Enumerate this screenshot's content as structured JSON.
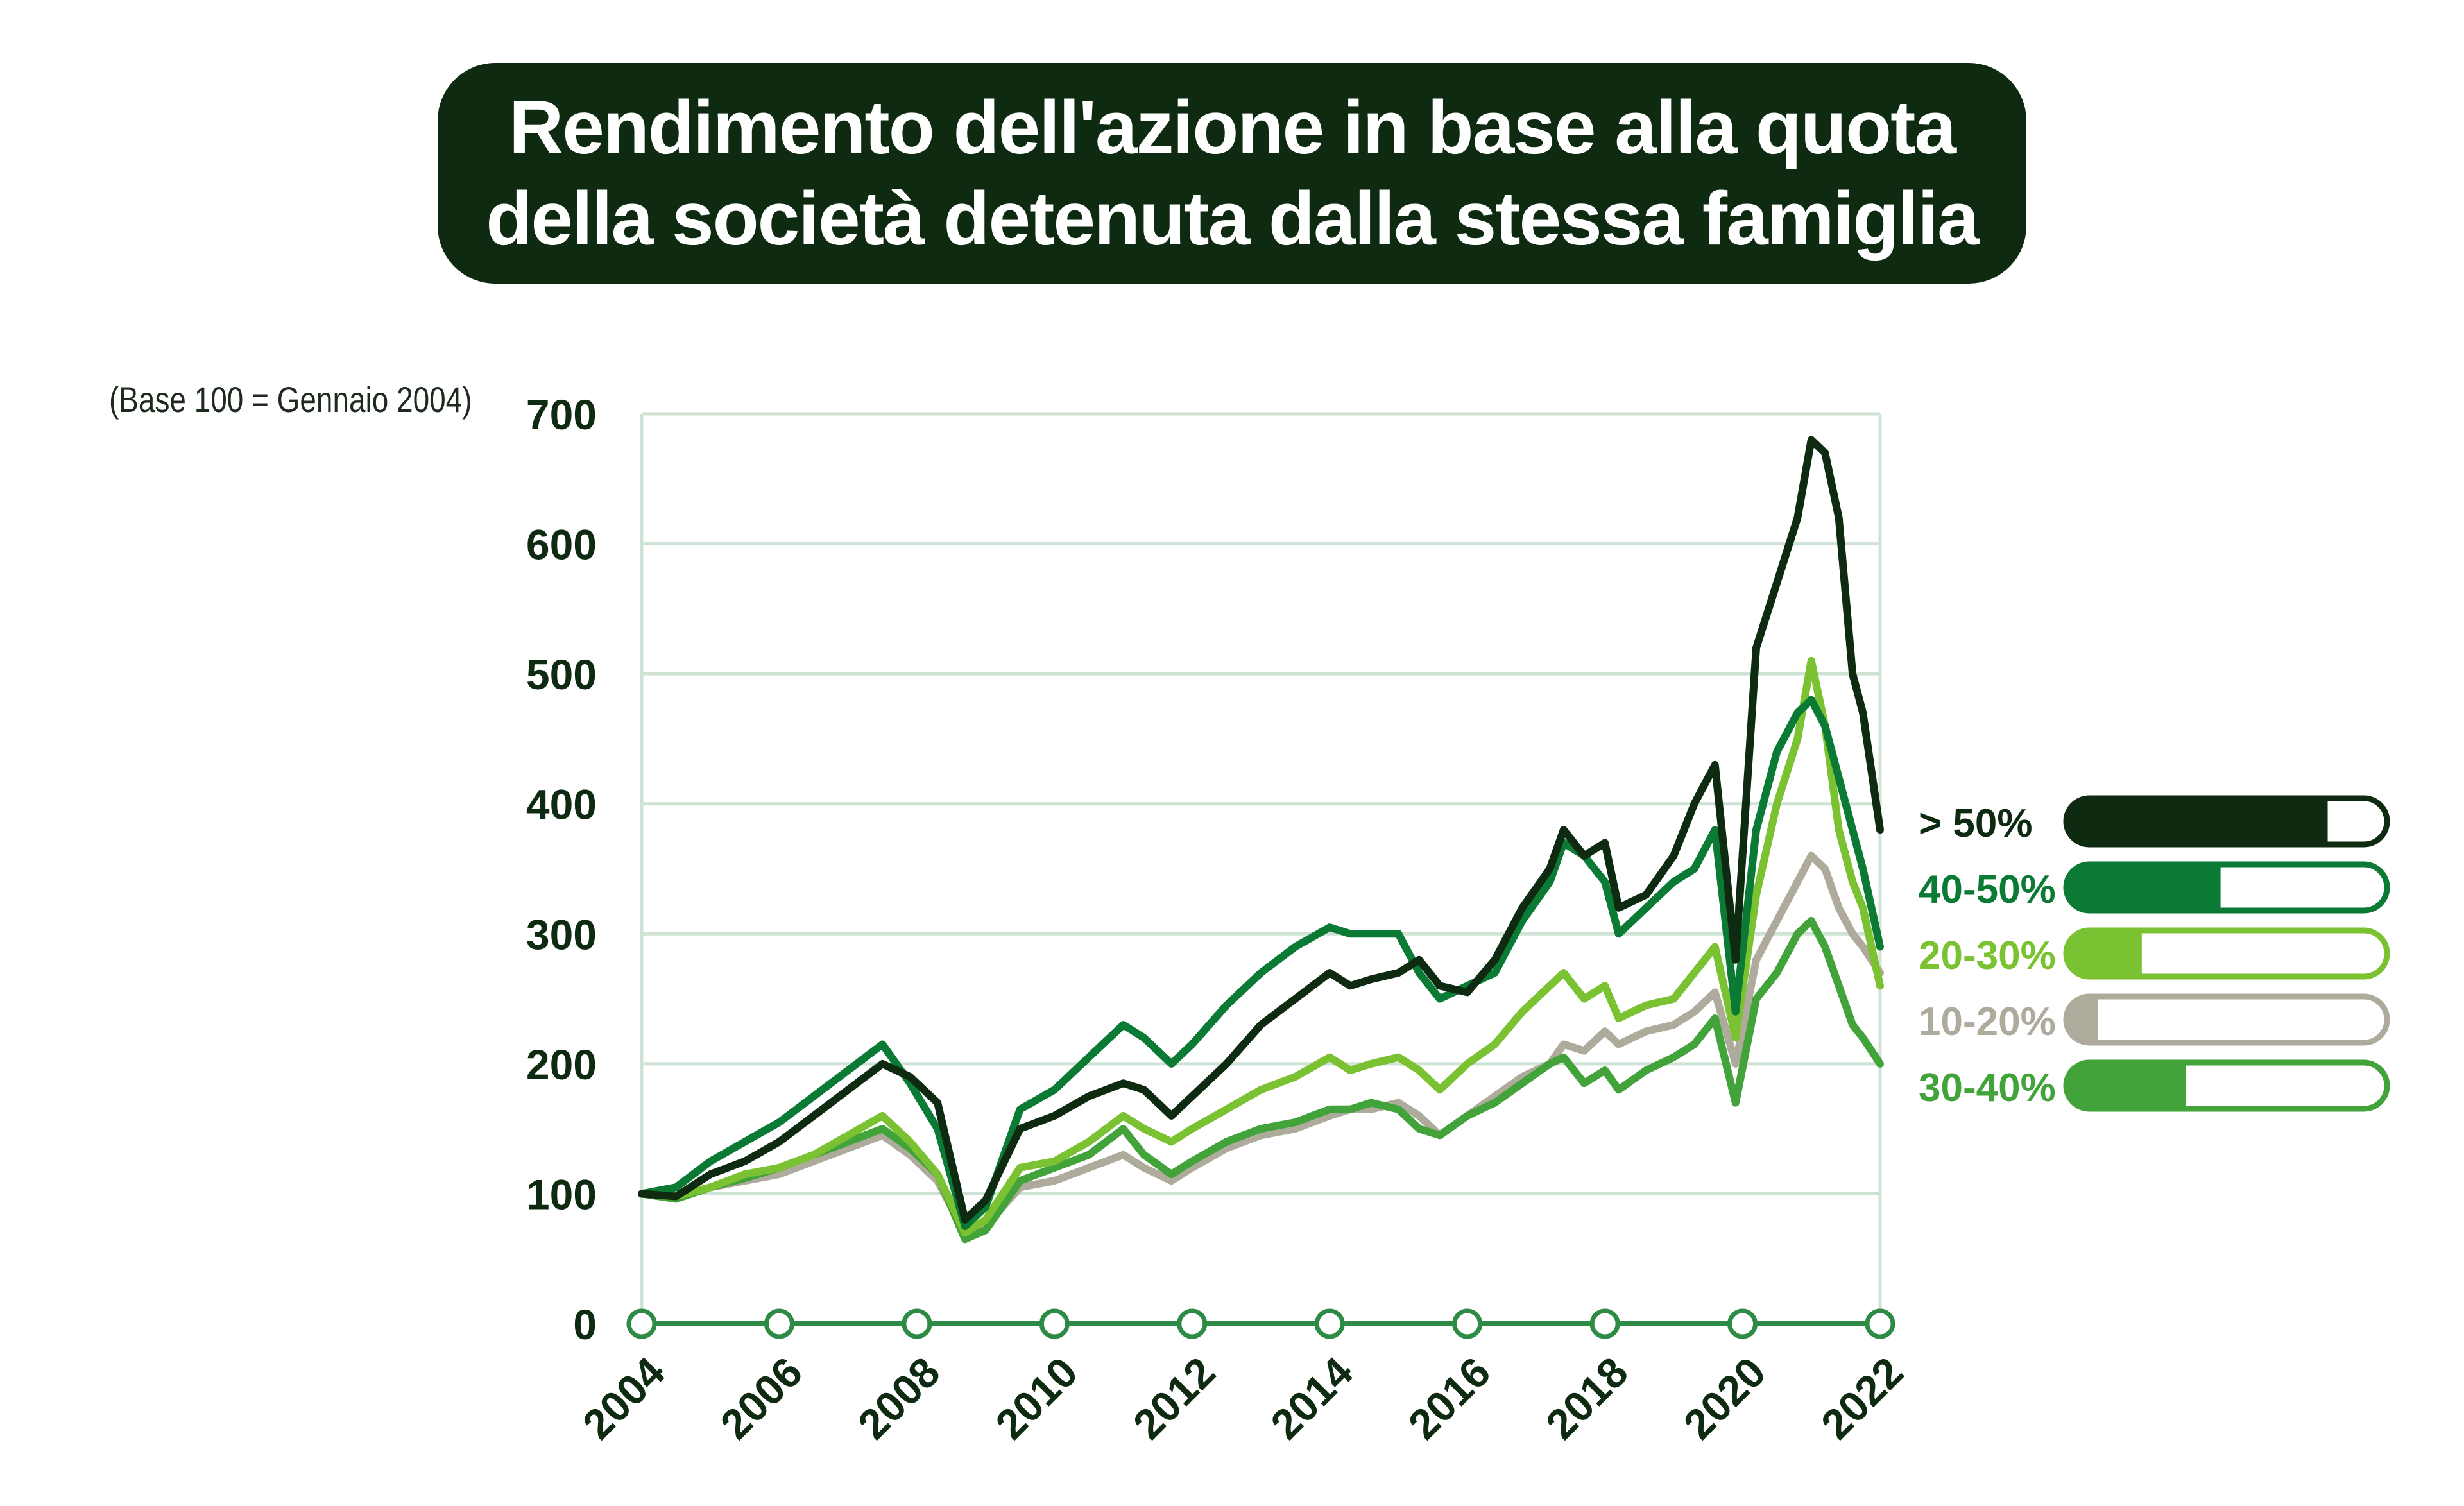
{
  "title": "Rendimento dell'azione in base alla quota della società detenuta dalla stessa famiglia",
  "note": "(Base 100 = Gennaio 2004)",
  "colors": {
    "title_bg": "#0e2b12",
    "series_gt50": "#0e2b12",
    "series_40_50": "#0a7a34",
    "series_20_30": "#7ac231",
    "series_10_20": "#aeaa9c",
    "series_30_40": "#42a33a",
    "grid": "#cfe3d4",
    "axis": "#2e8b46"
  },
  "chart_data": {
    "type": "line",
    "title": "Rendimento dell'azione in base alla quota della società detenuta dalla stessa famiglia",
    "xlabel": "",
    "ylabel": "(Base 100 = Gennaio 2004)",
    "xlim": [
      2004,
      2022
    ],
    "ylim": [
      0,
      700
    ],
    "y_ticks": [
      0,
      100,
      200,
      300,
      400,
      500,
      600,
      700
    ],
    "x_ticks": [
      "2004",
      "2006",
      "2008",
      "2010",
      "2012",
      "2014",
      "2016",
      "2018",
      "2020",
      "2022"
    ],
    "grid": "horizontal",
    "legend_position": "right",
    "series": [
      {
        "name": "> 50%",
        "color": "#0e2b12",
        "legend_fill": 0.83,
        "x": [
          2004.0,
          2004.5,
          2005.0,
          2005.5,
          2006.0,
          2006.5,
          2007.0,
          2007.5,
          2007.9,
          2008.3,
          2008.7,
          2009.0,
          2009.5,
          2010.0,
          2010.5,
          2011.0,
          2011.3,
          2011.7,
          2012.0,
          2012.5,
          2013.0,
          2013.5,
          2014.0,
          2014.3,
          2014.6,
          2015.0,
          2015.3,
          2015.6,
          2016.0,
          2016.4,
          2016.8,
          2017.2,
          2017.4,
          2017.7,
          2018.0,
          2018.2,
          2018.6,
          2019.0,
          2019.3,
          2019.6,
          2019.9,
          2020.2,
          2020.5,
          2020.8,
          2021.0,
          2021.2,
          2021.4,
          2021.6,
          2021.75,
          2022.0
        ],
        "y": [
          100,
          98,
          115,
          125,
          140,
          160,
          180,
          200,
          190,
          170,
          80,
          95,
          150,
          160,
          175,
          185,
          180,
          160,
          175,
          200,
          230,
          250,
          270,
          260,
          265,
          270,
          280,
          260,
          255,
          280,
          320,
          350,
          380,
          360,
          370,
          320,
          330,
          360,
          400,
          430,
          280,
          520,
          570,
          620,
          680,
          670,
          620,
          500,
          470,
          380
        ]
      },
      {
        "name": "40-50%",
        "color": "#0a7a34",
        "legend_fill": 0.49,
        "x": [
          2004.0,
          2004.5,
          2005.0,
          2005.5,
          2006.0,
          2006.5,
          2007.0,
          2007.5,
          2007.9,
          2008.3,
          2008.7,
          2009.0,
          2009.5,
          2010.0,
          2010.5,
          2011.0,
          2011.3,
          2011.7,
          2012.0,
          2012.5,
          2013.0,
          2013.5,
          2014.0,
          2014.3,
          2014.6,
          2015.0,
          2015.3,
          2015.6,
          2016.0,
          2016.4,
          2016.8,
          2017.2,
          2017.4,
          2017.7,
          2018.0,
          2018.2,
          2018.6,
          2019.0,
          2019.3,
          2019.6,
          2019.9,
          2020.2,
          2020.5,
          2020.8,
          2021.0,
          2021.2,
          2021.4,
          2021.6,
          2021.75,
          2022.0
        ],
        "y": [
          100,
          105,
          125,
          140,
          155,
          175,
          195,
          215,
          185,
          150,
          75,
          90,
          165,
          180,
          205,
          230,
          220,
          200,
          215,
          245,
          270,
          290,
          305,
          300,
          300,
          300,
          270,
          250,
          260,
          270,
          310,
          340,
          370,
          360,
          340,
          300,
          320,
          340,
          350,
          380,
          240,
          380,
          440,
          470,
          480,
          460,
          420,
          380,
          350,
          290
        ]
      },
      {
        "name": "20-30%",
        "color": "#7ac231",
        "legend_fill": 0.24,
        "x": [
          2004.0,
          2004.5,
          2005.0,
          2005.5,
          2006.0,
          2006.5,
          2007.0,
          2007.5,
          2007.9,
          2008.3,
          2008.7,
          2009.0,
          2009.5,
          2010.0,
          2010.5,
          2011.0,
          2011.3,
          2011.7,
          2012.0,
          2012.5,
          2013.0,
          2013.5,
          2014.0,
          2014.3,
          2014.6,
          2015.0,
          2015.3,
          2015.6,
          2016.0,
          2016.4,
          2016.8,
          2017.2,
          2017.4,
          2017.7,
          2018.0,
          2018.2,
          2018.6,
          2019.0,
          2019.3,
          2019.6,
          2019.9,
          2020.2,
          2020.5,
          2020.8,
          2021.0,
          2021.2,
          2021.4,
          2021.6,
          2021.75,
          2022.0
        ],
        "y": [
          100,
          98,
          105,
          115,
          120,
          130,
          145,
          160,
          140,
          115,
          70,
          80,
          120,
          125,
          140,
          160,
          150,
          140,
          150,
          165,
          180,
          190,
          205,
          195,
          200,
          205,
          195,
          180,
          200,
          215,
          240,
          260,
          270,
          250,
          260,
          235,
          245,
          250,
          270,
          290,
          220,
          330,
          400,
          450,
          510,
          460,
          380,
          340,
          320,
          260
        ]
      },
      {
        "name": "10-20%",
        "color": "#aeaa9c",
        "legend_fill": 0.1,
        "x": [
          2004.0,
          2004.5,
          2005.0,
          2005.5,
          2006.0,
          2006.5,
          2007.0,
          2007.5,
          2007.9,
          2008.3,
          2008.7,
          2009.0,
          2009.5,
          2010.0,
          2010.5,
          2011.0,
          2011.3,
          2011.7,
          2012.0,
          2012.5,
          2013.0,
          2013.5,
          2014.0,
          2014.3,
          2014.6,
          2015.0,
          2015.3,
          2015.6,
          2016.0,
          2016.4,
          2016.8,
          2017.2,
          2017.4,
          2017.7,
          2018.0,
          2018.2,
          2018.6,
          2019.0,
          2019.3,
          2019.6,
          2019.9,
          2020.2,
          2020.5,
          2020.8,
          2021.0,
          2021.2,
          2021.4,
          2021.6,
          2021.75,
          2022.0
        ],
        "y": [
          100,
          97,
          105,
          110,
          115,
          125,
          135,
          145,
          130,
          110,
          70,
          75,
          105,
          110,
          120,
          130,
          120,
          110,
          120,
          135,
          145,
          150,
          160,
          165,
          165,
          170,
          160,
          145,
          160,
          175,
          190,
          200,
          215,
          210,
          225,
          215,
          225,
          230,
          240,
          255,
          200,
          280,
          310,
          340,
          360,
          350,
          320,
          300,
          290,
          270
        ]
      },
      {
        "name": "30-40%",
        "color": "#42a33a",
        "legend_fill": 0.38,
        "x": [
          2004.0,
          2004.5,
          2005.0,
          2005.5,
          2006.0,
          2006.5,
          2007.0,
          2007.5,
          2007.9,
          2008.3,
          2008.7,
          2009.0,
          2009.5,
          2010.0,
          2010.5,
          2011.0,
          2011.3,
          2011.7,
          2012.0,
          2012.5,
          2013.0,
          2013.5,
          2014.0,
          2014.3,
          2014.6,
          2015.0,
          2015.3,
          2015.6,
          2016.0,
          2016.4,
          2016.8,
          2017.2,
          2017.4,
          2017.7,
          2018.0,
          2018.2,
          2018.6,
          2019.0,
          2019.3,
          2019.6,
          2019.9,
          2020.2,
          2020.5,
          2020.8,
          2021.0,
          2021.2,
          2021.4,
          2021.6,
          2021.75,
          2022.0
        ],
        "y": [
          100,
          96,
          105,
          112,
          120,
          130,
          140,
          150,
          135,
          115,
          65,
          72,
          110,
          120,
          130,
          150,
          130,
          115,
          125,
          140,
          150,
          155,
          165,
          165,
          170,
          165,
          150,
          145,
          160,
          170,
          185,
          200,
          205,
          185,
          195,
          180,
          195,
          205,
          215,
          235,
          170,
          250,
          270,
          300,
          310,
          290,
          260,
          230,
          220,
          200
        ]
      }
    ]
  }
}
